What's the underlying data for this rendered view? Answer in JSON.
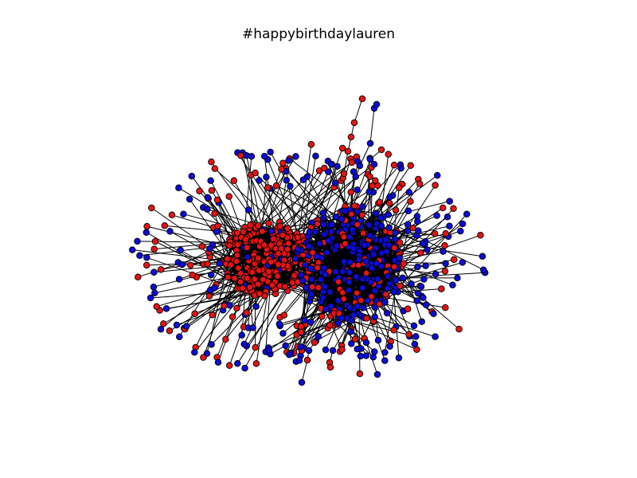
{
  "title": "#happybirthdaylauren",
  "graph": {
    "type": "network",
    "node_colors": {
      "red": "#e31414",
      "blue": "#0b0bd6"
    },
    "node_outline": "#000000",
    "edge_color": "#000000"
  }
}
